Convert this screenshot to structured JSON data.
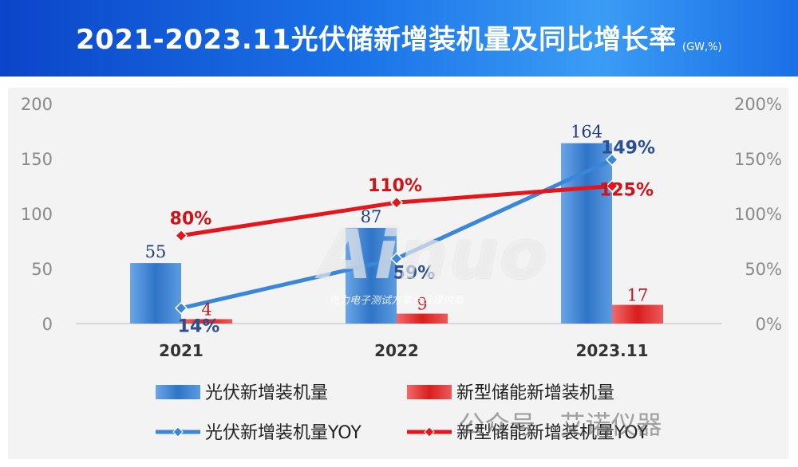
{
  "header": {
    "title": "2021-2023.11光伏储新增装机量及同比增长率",
    "unit": "(GW,%)"
  },
  "chart_data": {
    "type": "bar",
    "title": "2021-2023.11光伏储新增装机量及同比增长率",
    "categories": [
      "2021",
      "2022",
      "2023.11"
    ],
    "y_left": {
      "range": [
        0,
        200
      ],
      "ticks": [
        "0",
        "50",
        "100",
        "150",
        "200"
      ]
    },
    "y_right": {
      "range": [
        0,
        200
      ],
      "ticks": [
        "0%",
        "50%",
        "100%",
        "150%",
        "200%"
      ]
    },
    "grid": false,
    "legend_position": "bottom",
    "series": [
      {
        "name": "光伏新增装机量",
        "kind": "bar",
        "axis": "left",
        "color": "#3a7ccc",
        "values": [
          55,
          87,
          164
        ],
        "labels": [
          "55",
          "87",
          "164"
        ],
        "label_color": "#1f3d7a"
      },
      {
        "name": "新型储能新增装机量",
        "kind": "bar",
        "axis": "left",
        "color": "#e03030",
        "values": [
          4,
          9,
          17
        ],
        "labels": [
          "4",
          "9",
          "17"
        ],
        "label_color": "#c0171b"
      },
      {
        "name": "光伏新增装机量YOY",
        "kind": "line",
        "axis": "right",
        "color": "#3a86d8",
        "values": [
          14,
          59,
          149
        ],
        "labels": [
          "14%",
          "59%",
          "149%"
        ],
        "label_color": "#2b4f8f"
      },
      {
        "name": "新型储能新增装机量YOY",
        "kind": "line",
        "axis": "right",
        "color": "#e3161b",
        "values": [
          80,
          110,
          125
        ],
        "labels": [
          "80%",
          "110%",
          "125%"
        ],
        "label_color": "#d01318"
      }
    ]
  },
  "watermark": {
    "main": "Ainuo",
    "sub": "电力电子测试方案专业提供商"
  },
  "brand": {
    "text": "公众号 · 艾诺仪器"
  }
}
